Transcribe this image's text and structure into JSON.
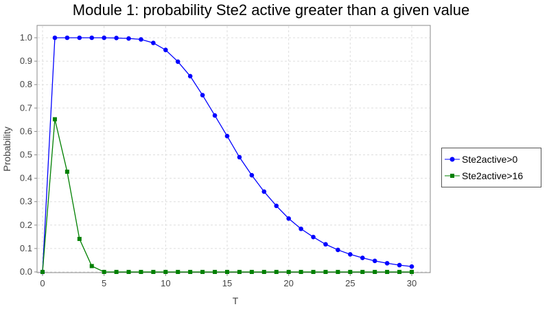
{
  "chart_data": {
    "type": "line",
    "title": "Module 1: probability Ste2 active greater than a given value",
    "xlabel": "T",
    "ylabel": "Probability",
    "xlim": [
      0,
      30
    ],
    "ylim": [
      0,
      1.0
    ],
    "xticks": [
      "0",
      "5",
      "10",
      "15",
      "20",
      "25",
      "30"
    ],
    "yticks": [
      "0.0",
      "0.1",
      "0.2",
      "0.3",
      "0.4",
      "0.5",
      "0.6",
      "0.7",
      "0.8",
      "0.9",
      "1.0"
    ],
    "grid": true,
    "legend_position": "right",
    "x": [
      0,
      1,
      2,
      3,
      4,
      5,
      6,
      7,
      8,
      9,
      10,
      11,
      12,
      13,
      14,
      15,
      16,
      17,
      18,
      19,
      20,
      21,
      22,
      23,
      24,
      25,
      26,
      27,
      28,
      29,
      30
    ],
    "series": [
      {
        "name": "Ste2active>0",
        "color": "#0000ff",
        "marker": "circle",
        "values": [
          0,
          1.0,
          1.0,
          1.0,
          1.0,
          1.0,
          0.999,
          0.997,
          0.993,
          0.978,
          0.948,
          0.898,
          0.836,
          0.755,
          0.668,
          0.58,
          0.49,
          0.413,
          0.343,
          0.282,
          0.228,
          0.184,
          0.149,
          0.118,
          0.094,
          0.075,
          0.06,
          0.047,
          0.037,
          0.029,
          0.023
        ]
      },
      {
        "name": "Ste2active>16",
        "color": "#008000",
        "marker": "square",
        "values": [
          0,
          0.652,
          0.428,
          0.141,
          0.025,
          0,
          0,
          0,
          0,
          0,
          0,
          0,
          0,
          0,
          0,
          0,
          0,
          0,
          0,
          0,
          0,
          0,
          0,
          0,
          0,
          0,
          0,
          0,
          0,
          0,
          0
        ]
      }
    ]
  }
}
